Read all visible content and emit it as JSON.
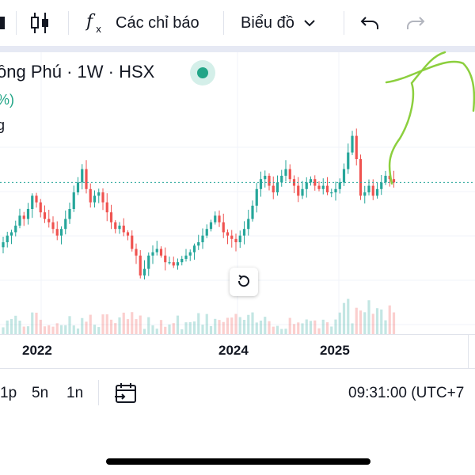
{
  "toolbar": {
    "indicators_label": "Các chỉ báo",
    "chart_type_label": "Biểu đồ",
    "icons": [
      "candlestick-icon",
      "function-icon",
      "chevron-down-icon",
      "undo-icon",
      "redo-icon"
    ]
  },
  "symbol": {
    "title": "ồng Phú · 1W · HSX",
    "change_fragment": "%)",
    "volume_fragment": "g",
    "status_color": "#22a587"
  },
  "axis": {
    "years": [
      "2022",
      "2024",
      "2025"
    ]
  },
  "bottom": {
    "range_1p": "1p",
    "range_5n": "5n",
    "range_1n": "1n",
    "time": "09:31:00 (UTC+7"
  },
  "colors": {
    "up": "#26a69a",
    "down": "#ef5350",
    "drawing": "#8ccf3e",
    "grid": "#e0e3eb"
  },
  "chart_data": {
    "type": "candlestick",
    "interval": "1W",
    "close_approx": [
      48,
      50,
      51,
      53,
      56,
      55,
      58,
      62,
      60,
      57,
      55,
      54,
      52,
      50,
      52,
      55,
      58,
      63,
      66,
      70,
      64,
      60,
      62,
      63,
      60,
      57,
      54,
      52,
      53,
      51,
      50,
      46,
      44,
      38,
      40,
      44,
      45,
      46,
      44,
      42,
      42,
      41,
      42,
      43,
      44,
      45,
      47,
      48,
      50,
      52,
      54,
      56,
      54,
      51,
      50,
      49,
      48,
      50,
      52,
      55,
      59,
      64,
      67,
      68,
      65,
      63,
      66,
      68,
      70,
      67,
      65,
      62,
      64,
      66,
      67,
      65,
      64,
      65,
      63,
      63,
      64,
      66,
      70,
      75,
      80,
      73,
      62,
      63,
      65,
      62,
      64,
      66,
      68,
      67,
      66
    ]
  }
}
